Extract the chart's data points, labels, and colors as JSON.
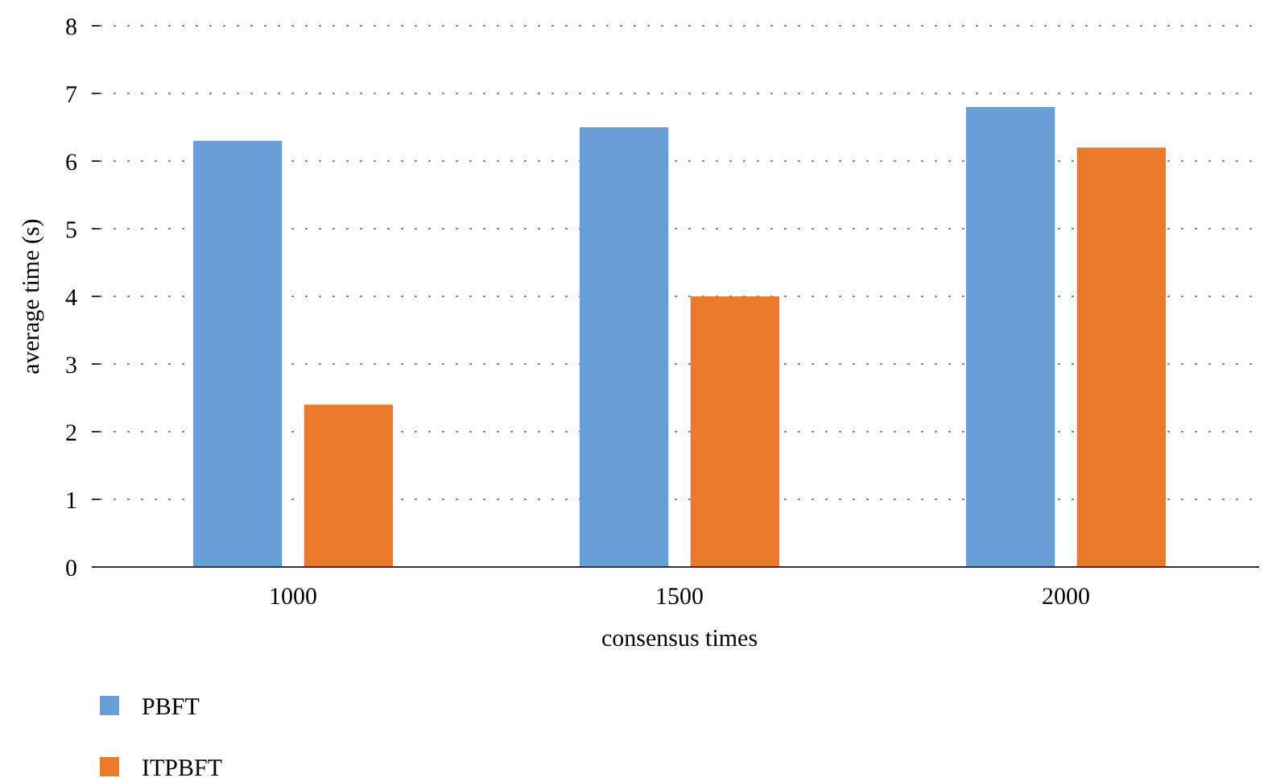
{
  "chart_data": {
    "type": "bar",
    "xlabel": "consensus times",
    "ylabel": "average time (s)",
    "categories": [
      "1000",
      "1500",
      "2000"
    ],
    "series": [
      {
        "name": "PBFT",
        "color": "#689fd6",
        "values": [
          6.3,
          6.5,
          6.8
        ]
      },
      {
        "name": "ITPBFT",
        "color": "#ec7a2b",
        "values": [
          2.4,
          4.0,
          6.2
        ]
      }
    ],
    "ylim": [
      0,
      8
    ],
    "yticks": [
      0,
      1,
      2,
      3,
      4,
      5,
      6,
      7,
      8
    ],
    "grid": "y",
    "legend": "bottom left"
  }
}
